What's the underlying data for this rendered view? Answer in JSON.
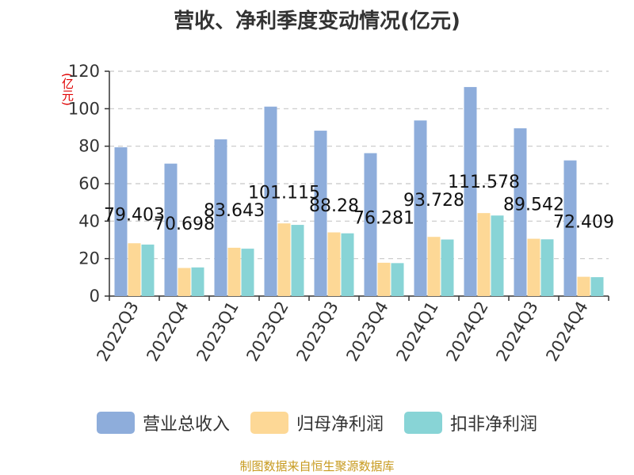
{
  "chart_data": {
    "type": "bar",
    "title": "营收、净利季度变动情况(亿元)",
    "ylabel": "(亿元)",
    "ylim": [
      0,
      120
    ],
    "yticks": [
      0,
      20,
      40,
      60,
      80,
      100,
      120
    ],
    "grid": true,
    "legend_position": "bottom",
    "categories": [
      "2022Q3",
      "2022Q4",
      "2023Q1",
      "2023Q2",
      "2023Q3",
      "2023Q4",
      "2024Q1",
      "2024Q2",
      "2024Q3",
      "2024Q4"
    ],
    "series": [
      {
        "name": "营业总收入",
        "color": "#8eaddb",
        "values": [
          79.403,
          70.698,
          83.643,
          101.115,
          88.28,
          76.281,
          93.728,
          111.578,
          89.542,
          72.409
        ],
        "labels": [
          "79.403",
          "70.698",
          "83.643",
          "101.115",
          "88.28",
          "76.281",
          "93.728",
          "111.578",
          "89.542",
          "72.409"
        ]
      },
      {
        "name": "归母净利润",
        "color": "#fdd896",
        "values": [
          28.2,
          15.0,
          25.8,
          38.8,
          34.0,
          17.8,
          31.6,
          44.3,
          30.6,
          10.3
        ]
      },
      {
        "name": "扣非净利润",
        "color": "#88d4d6",
        "values": [
          27.5,
          15.3,
          25.3,
          38.0,
          33.5,
          17.6,
          30.2,
          43.0,
          30.3,
          10.1
        ]
      }
    ]
  },
  "source_note": "制图数据来自恒生聚源数据库"
}
